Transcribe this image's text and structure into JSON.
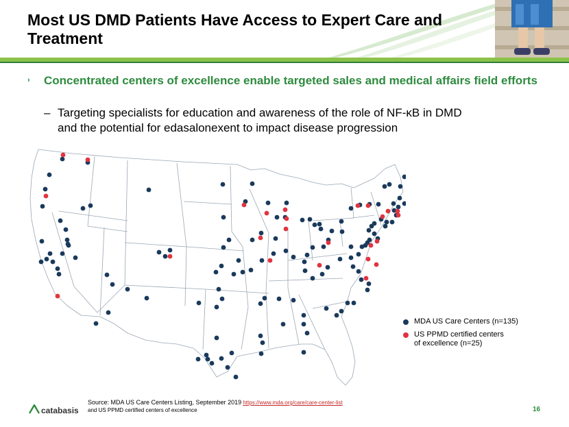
{
  "slide": {
    "title": "Most US DMD Patients Have Access to Expert Care and Treatment",
    "bullet_primary": "Concentrated centers of excellence enable targeted sales and medical affairs field efforts",
    "bullet_secondary": "Targeting specialists for education and awareness of the role of NF-κB in DMD and the potential for edasalonexent to impact disease progression",
    "bullet_marker": "›",
    "dash_marker": "–",
    "page_number": "16"
  },
  "legend": {
    "mda_label": "MDA US Care Centers (n=135)",
    "ppmd_label": "US PPMD certified centers of excellence (n=25)",
    "mda_color": "#1a3a5c",
    "ppmd_color": "#e03440"
  },
  "source": {
    "prefix": "Source: MDA US Care Centers Listing, September 2019",
    "link": "https://www.mda.org/care/care-center-list",
    "suffix": "and US PPMD certified centers of excellence"
  },
  "logo": {
    "name": "catabasis",
    "icon": "catabasis-logo-icon"
  },
  "map": {
    "icon": "us-states-map",
    "fill_color": "#ffffff",
    "border_color": "#9aa7b4",
    "outline_color": "#b6bec7"
  }
}
